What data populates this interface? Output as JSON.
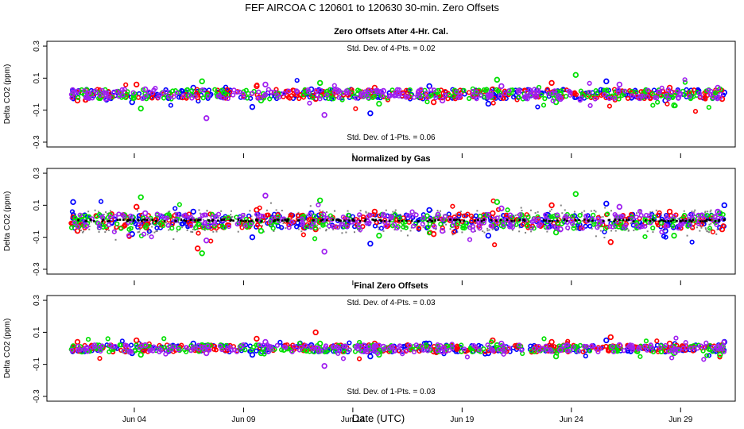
{
  "figure": {
    "title": "FEF    AIRCOA C    120601 to 120630    30-min. Zero Offsets",
    "xlabel": "Date (UTC)"
  },
  "colors": {
    "blue": "#0000ff",
    "red": "#ff0000",
    "green": "#00e000",
    "purple": "#a020f0",
    "gray": "#808080",
    "black": "#000000"
  },
  "chart_data": [
    {
      "type": "scatter",
      "title": "Zero Offsets After 4-Hr. Cal.",
      "ylabel": "Delta CO2 (ppm)",
      "ylim": [
        -0.33,
        0.33
      ],
      "yticks": [
        "-0.3",
        "-0.1",
        "0.1",
        "0.3"
      ],
      "ytick_values": [
        -0.3,
        -0.1,
        0.1,
        0.3
      ],
      "xlim": [
        0.0,
        31.5
      ],
      "xticks": [
        "Jun 04",
        "Jun 09",
        "Jun 14",
        "Jun 19",
        "Jun 24",
        "Jun 29"
      ],
      "xtick_values": [
        4,
        9,
        14,
        19,
        24,
        29
      ],
      "annotations": [
        "Std. Dev. of 4-Pts. =  0.02",
        "Std. Dev. of 1-Pts. =  0.06"
      ],
      "series": [
        {
          "color": "blue",
          "x": [
            1.2,
            3.9,
            6.7,
            9.4,
            12.1,
            14.8,
            17.5,
            20.2,
            22.9,
            25.6,
            28.3,
            31.0
          ],
          "y": [
            0.02,
            -0.05,
            0.04,
            -0.08,
            0.03,
            -0.12,
            0.05,
            -0.06,
            0.02,
            0.08,
            -0.04,
            0.01
          ]
        },
        {
          "color": "red",
          "x": [
            1.4,
            4.1,
            6.9,
            9.6,
            12.3,
            15.0,
            17.7,
            20.4,
            23.1,
            25.8,
            28.5,
            30.9
          ],
          "y": [
            -0.04,
            0.06,
            -0.02,
            0.05,
            -0.03,
            0.04,
            -0.05,
            0.03,
            0.07,
            -0.02,
            0.04,
            -0.03
          ]
        },
        {
          "color": "green",
          "x": [
            1.6,
            4.3,
            7.1,
            9.8,
            12.5,
            15.2,
            17.9,
            20.6,
            23.3,
            24.2,
            28.7,
            30.8
          ],
          "y": [
            0.01,
            -0.09,
            0.08,
            -0.04,
            0.07,
            -0.06,
            0.02,
            0.09,
            -0.05,
            0.12,
            -0.07,
            0.03
          ]
        },
        {
          "color": "purple",
          "x": [
            1.8,
            4.5,
            7.3,
            10.0,
            12.7,
            15.4,
            18.1,
            20.8,
            23.5,
            26.2,
            28.9,
            30.7
          ],
          "y": [
            -0.02,
            0.03,
            -0.15,
            0.06,
            -0.13,
            0.02,
            -0.04,
            0.05,
            -0.03,
            0.06,
            -0.02,
            0.04
          ]
        }
      ]
    },
    {
      "type": "scatter",
      "title": "Normalized by Gas",
      "ylabel": "Delta CO2 (ppm)",
      "ylim": [
        -0.33,
        0.33
      ],
      "yticks": [
        "-0.3",
        "-0.1",
        "0.1",
        "0.3"
      ],
      "ytick_values": [
        -0.3,
        -0.1,
        0.1,
        0.3
      ],
      "xlim": [
        0.0,
        31.5
      ],
      "xticks": [
        "Jun 04",
        "Jun 09",
        "Jun 14",
        "Jun 19",
        "Jun 24",
        "Jun 29"
      ],
      "xtick_values": [
        4,
        9,
        14,
        19,
        24,
        29
      ],
      "annotations": [],
      "series": [
        {
          "color": "blue",
          "x": [
            1.2,
            3.9,
            6.7,
            9.4,
            12.1,
            14.8,
            17.5,
            20.2,
            22.9,
            25.6,
            28.3,
            31.0
          ],
          "y": [
            0.12,
            -0.08,
            0.06,
            -0.1,
            0.05,
            -0.14,
            0.07,
            -0.09,
            0.04,
            0.11,
            -0.06,
            0.1
          ]
        },
        {
          "color": "red",
          "x": [
            1.4,
            4.1,
            6.9,
            9.6,
            12.3,
            15.0,
            17.7,
            20.4,
            23.1,
            25.8,
            28.5,
            30.9
          ],
          "y": [
            -0.06,
            0.09,
            -0.17,
            0.07,
            -0.05,
            0.06,
            -0.08,
            0.05,
            0.1,
            -0.13,
            0.06,
            -0.05
          ]
        },
        {
          "color": "green",
          "x": [
            1.6,
            4.3,
            7.1,
            9.8,
            12.5,
            15.2,
            17.9,
            20.6,
            23.3,
            24.2,
            28.7,
            30.8
          ],
          "y": [
            0.03,
            0.15,
            -0.2,
            -0.06,
            0.13,
            -0.09,
            0.04,
            0.12,
            -0.07,
            0.17,
            -0.09,
            0.05
          ]
        },
        {
          "color": "purple",
          "x": [
            1.8,
            4.5,
            7.3,
            10.0,
            12.7,
            15.4,
            18.1,
            20.8,
            23.5,
            26.2,
            28.9,
            30.7
          ],
          "y": [
            -0.03,
            0.05,
            -0.12,
            0.16,
            -0.19,
            0.04,
            -0.06,
            0.08,
            -0.05,
            0.09,
            -0.04,
            0.06
          ]
        },
        {
          "color": "black",
          "x": [
            2.0,
            5.0,
            8.0,
            11.0,
            14.0,
            17.0,
            20.0,
            23.0,
            26.0,
            29.0,
            31.0
          ],
          "y": [
            0.01,
            0.0,
            0.01,
            0.0,
            0.01,
            0.0,
            0.01,
            0.0,
            0.01,
            0.0,
            0.01
          ]
        }
      ]
    },
    {
      "type": "scatter",
      "title": "Final Zero Offsets",
      "ylabel": "Delta CO2 (ppm)",
      "ylim": [
        -0.33,
        0.33
      ],
      "yticks": [
        "-0.3",
        "-0.1",
        "0.1",
        "0.3"
      ],
      "ytick_values": [
        -0.3,
        -0.1,
        0.1,
        0.3
      ],
      "xlim": [
        0.0,
        31.5
      ],
      "xticks": [
        "Jun 04",
        "Jun 09",
        "Jun 14",
        "Jun 19",
        "Jun 24",
        "Jun 29"
      ],
      "xtick_values": [
        4,
        9,
        14,
        19,
        24,
        29
      ],
      "annotations": [
        "Std. Dev. of 4-Pts. =  0.03",
        "Std. Dev. of 1-Pts. =  0.03"
      ],
      "series": [
        {
          "color": "blue",
          "x": [
            1.2,
            3.9,
            6.7,
            9.4,
            12.1,
            14.8,
            17.5,
            20.2,
            22.9,
            25.6,
            28.3,
            31.0
          ],
          "y": [
            0.01,
            -0.03,
            0.03,
            -0.04,
            0.02,
            -0.05,
            0.03,
            -0.03,
            0.01,
            0.05,
            -0.02,
            0.04
          ]
        },
        {
          "color": "red",
          "x": [
            1.4,
            4.1,
            6.9,
            9.6,
            12.3,
            15.0,
            17.7,
            20.4,
            23.1,
            25.8,
            28.5,
            30.9
          ],
          "y": [
            0.04,
            0.05,
            -0.01,
            0.06,
            0.1,
            0.03,
            -0.02,
            0.05,
            0.04,
            0.07,
            0.03,
            0.02
          ]
        },
        {
          "color": "green",
          "x": [
            1.6,
            4.3,
            7.1,
            9.8,
            12.5,
            15.2,
            17.9,
            20.6,
            23.3,
            24.2,
            28.7,
            30.8
          ],
          "y": [
            -0.02,
            -0.04,
            0.02,
            -0.03,
            0.03,
            -0.04,
            0.01,
            0.02,
            -0.05,
            0.01,
            -0.03,
            -0.04
          ]
        },
        {
          "color": "purple",
          "x": [
            1.8,
            4.5,
            7.3,
            10.0,
            12.7,
            15.4,
            18.1,
            20.8,
            23.5,
            26.2,
            28.9,
            30.7
          ],
          "y": [
            0.0,
            0.02,
            -0.03,
            0.04,
            -0.11,
            0.01,
            -0.02,
            0.03,
            -0.01,
            0.02,
            -0.01,
            0.01
          ]
        }
      ]
    }
  ]
}
